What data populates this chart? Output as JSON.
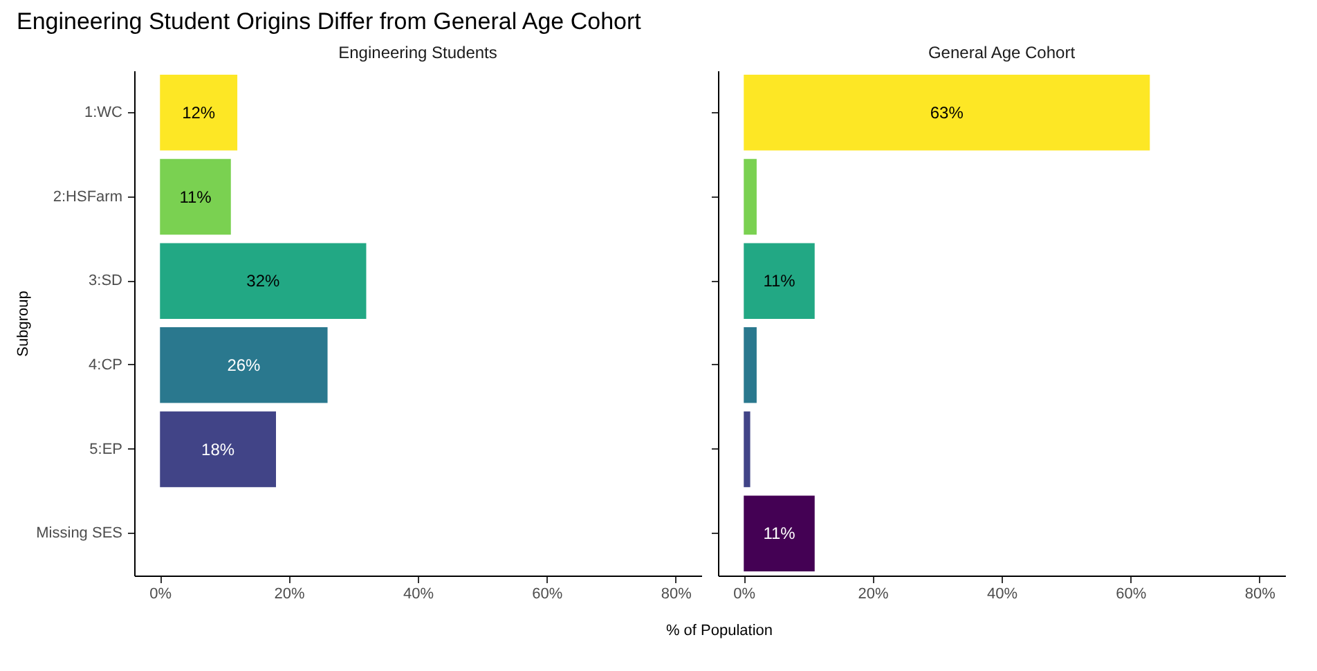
{
  "chart_data": [
    {
      "type": "bar",
      "orientation": "horizontal",
      "title": "Engineering Student Origins Differ from General Age Cohort",
      "subtitle": "Engineering Students",
      "ylabel": "Subgroup",
      "xlabel": "% of Population",
      "categories": [
        "1:WC",
        "2:HSFarm",
        "3:SD",
        "4:CP",
        "5:EP",
        "Missing SES"
      ],
      "values": [
        12,
        11,
        32,
        26,
        18,
        null
      ],
      "value_labels": [
        "12%",
        "11%",
        "32%",
        "26%",
        "18%",
        null
      ],
      "colors": [
        "#fde725",
        "#7ad151",
        "#22a884",
        "#2a788e",
        "#414487",
        "#440154"
      ],
      "xlim": [
        -4,
        84
      ],
      "xticks": [
        {
          "value": 0,
          "label": "0%"
        },
        {
          "value": 20,
          "label": "20%"
        },
        {
          "value": 40,
          "label": "40%"
        },
        {
          "value": 60,
          "label": "60%"
        },
        {
          "value": 80,
          "label": "80%"
        }
      ]
    },
    {
      "type": "bar",
      "orientation": "horizontal",
      "subtitle": "General Age Cohort",
      "values": [
        63,
        2,
        11,
        2,
        1,
        11
      ],
      "value_labels": [
        "63%",
        null,
        "11%",
        null,
        null,
        "11%"
      ],
      "colors": [
        "#fde725",
        "#7ad151",
        "#22a884",
        "#2a788e",
        "#414487",
        "#440154"
      ],
      "xlim": [
        -4,
        84
      ],
      "xticks": [
        {
          "value": 0,
          "label": "0%"
        },
        {
          "value": 20,
          "label": "20%"
        },
        {
          "value": 40,
          "label": "40%"
        },
        {
          "value": 60,
          "label": "60%"
        },
        {
          "value": 80,
          "label": "80%"
        }
      ],
      "tick_labels": "x"
    }
  ]
}
